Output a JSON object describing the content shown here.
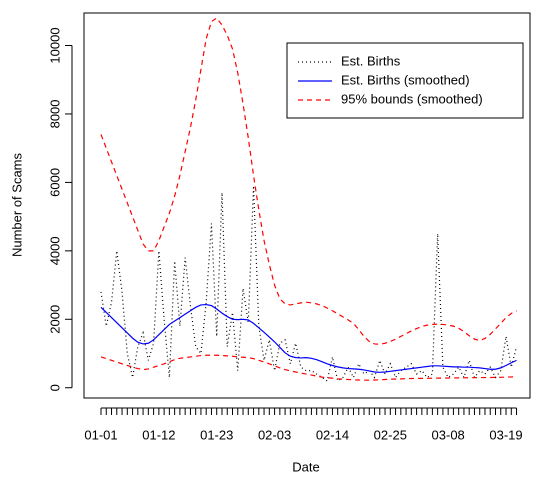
{
  "chart_data": {
    "type": "line",
    "x_label": "Date",
    "y_label": "Number of Scams",
    "categories": [
      "01-01",
      null,
      null,
      null,
      null,
      null,
      null,
      null,
      null,
      null,
      null,
      "01-12",
      null,
      null,
      null,
      null,
      null,
      null,
      null,
      null,
      null,
      null,
      "01-23",
      null,
      null,
      null,
      null,
      null,
      null,
      null,
      null,
      null,
      null,
      "02-03",
      null,
      null,
      null,
      null,
      null,
      null,
      null,
      null,
      null,
      null,
      "02-14",
      null,
      null,
      null,
      null,
      null,
      null,
      null,
      null,
      null,
      null,
      "02-25",
      null,
      null,
      null,
      null,
      null,
      null,
      null,
      null,
      null,
      null,
      "03-08",
      null,
      null,
      null,
      null,
      null,
      null,
      null,
      null,
      null,
      null,
      "03-19",
      null,
      null
    ],
    "ylim": [
      -300,
      10950
    ],
    "yticks": [
      0,
      2000,
      4000,
      6000,
      8000,
      10000
    ],
    "legend": "top-right",
    "series": [
      {
        "name": "Est. Births",
        "color": "#000000",
        "linestyle": "dotted",
        "values": [
          2800,
          1800,
          2500,
          4000,
          2800,
          1000,
          300,
          1200,
          1600,
          800,
          1300,
          4000,
          2000,
          300,
          3700,
          1800,
          3800,
          2400,
          1200,
          1000,
          2500,
          4800,
          1500,
          5700,
          1200,
          2200,
          500,
          2900,
          1900,
          5900,
          1800,
          800,
          1400,
          500,
          1300,
          1400,
          700,
          1300,
          600,
          500,
          500,
          400,
          300,
          200,
          900,
          200,
          300,
          600,
          300,
          700,
          400,
          500,
          300,
          800,
          400,
          700,
          300,
          500,
          600,
          700,
          400,
          500,
          300,
          400,
          4500,
          600,
          300,
          400,
          600,
          300,
          800,
          300,
          500,
          400,
          600,
          300,
          500,
          1500,
          600,
          1200
        ]
      },
      {
        "name": "Est. Births (smoothed)",
        "color": "#0000ff",
        "linestyle": "solid",
        "values": [
          2350,
          2200,
          2050,
          1900,
          1750,
          1600,
          1450,
          1330,
          1280,
          1300,
          1400,
          1550,
          1700,
          1850,
          1950,
          2050,
          2150,
          2250,
          2350,
          2420,
          2430,
          2400,
          2300,
          2180,
          2080,
          2000,
          1990,
          2000,
          1980,
          1880,
          1750,
          1620,
          1480,
          1340,
          1180,
          1020,
          920,
          880,
          870,
          880,
          860,
          820,
          760,
          700,
          650,
          610,
          580,
          560,
          550,
          540,
          520,
          490,
          460,
          450,
          460,
          480,
          500,
          520,
          540,
          560,
          580,
          600,
          620,
          640,
          640,
          630,
          620,
          610,
          610,
          600,
          600,
          590,
          580,
          560,
          540,
          540,
          580,
          650,
          730,
          800
        ]
      }
    ],
    "bounds": {
      "name": "95% bounds (smoothed)",
      "color": "#ff0000",
      "linestyle": "dashed",
      "upper": [
        7400,
        7000,
        6600,
        6200,
        5800,
        5400,
        5000,
        4600,
        4200,
        4000,
        4000,
        4300,
        4700,
        5100,
        5600,
        6200,
        6900,
        7600,
        8400,
        9300,
        10200,
        10700,
        10800,
        10600,
        10300,
        9900,
        9200,
        8300,
        7300,
        6200,
        5200,
        4300,
        3600,
        3000,
        2600,
        2450,
        2420,
        2450,
        2480,
        2500,
        2480,
        2450,
        2400,
        2330,
        2250,
        2160,
        2070,
        1980,
        1880,
        1700,
        1500,
        1350,
        1280,
        1270,
        1300,
        1350,
        1420,
        1500,
        1580,
        1660,
        1730,
        1790,
        1830,
        1850,
        1860,
        1850,
        1830,
        1800,
        1740,
        1640,
        1520,
        1420,
        1380,
        1440,
        1560,
        1720,
        1880,
        2050,
        2170,
        2250
      ],
      "lower": [
        900,
        850,
        800,
        750,
        700,
        650,
        600,
        560,
        530,
        550,
        600,
        650,
        700,
        760,
        820,
        860,
        880,
        900,
        920,
        940,
        950,
        950,
        950,
        940,
        930,
        920,
        900,
        890,
        880,
        850,
        800,
        750,
        700,
        640,
        580,
        530,
        490,
        460,
        430,
        400,
        370,
        340,
        310,
        290,
        280,
        260,
        250,
        240,
        230,
        225,
        220,
        220,
        225,
        230,
        240,
        250,
        255,
        260,
        265,
        270,
        272,
        274,
        276,
        278,
        280,
        282,
        284,
        286,
        288,
        290,
        292,
        294,
        296,
        298,
        300,
        302,
        305,
        310,
        315,
        320
      ]
    }
  }
}
